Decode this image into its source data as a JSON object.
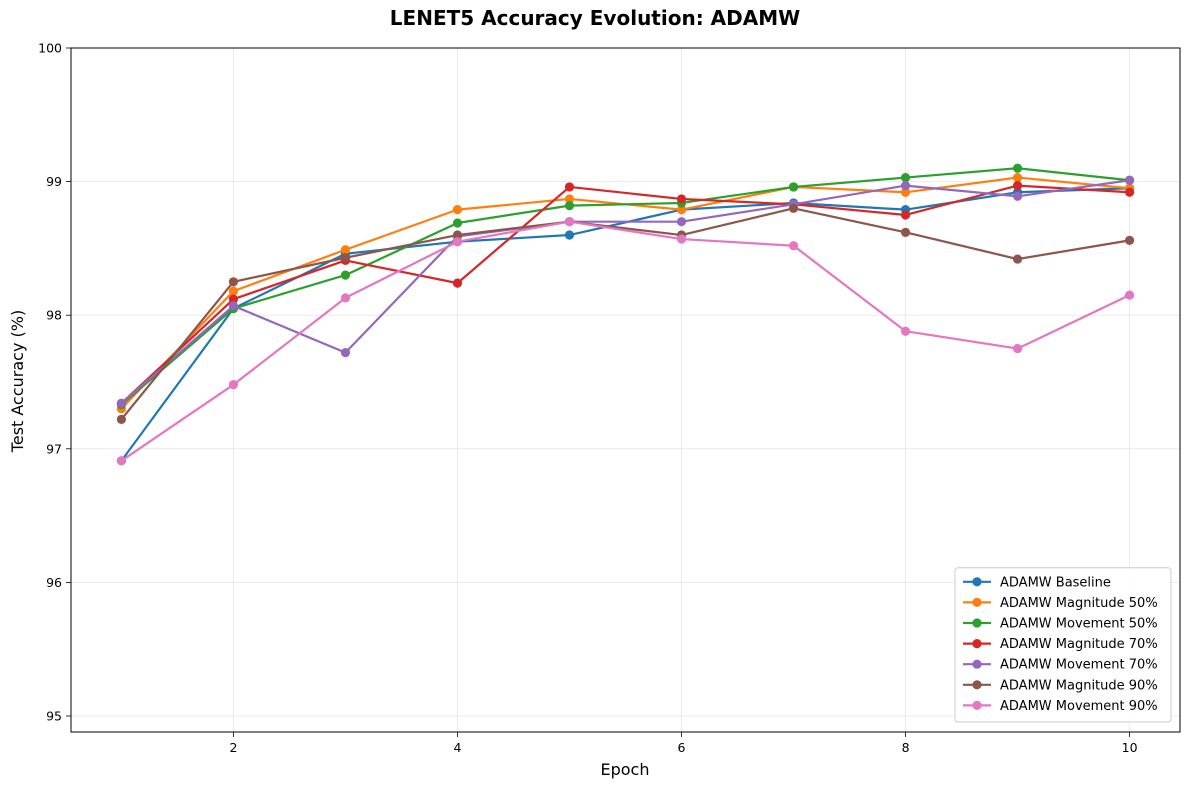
{
  "chart_data": {
    "type": "line",
    "title": "LENET5 Accuracy Evolution: ADAMW",
    "xlabel": "Epoch",
    "ylabel": "Test Accuracy (%)",
    "xlim": [
      0.55,
      10.45
    ],
    "ylim": [
      94.88,
      100
    ],
    "xticks": [
      2,
      4,
      6,
      8,
      10
    ],
    "yticks": [
      95,
      96,
      97,
      98,
      99,
      100
    ],
    "grid": true,
    "legend_position": "lower-right",
    "x": [
      1,
      2,
      3,
      4,
      5,
      6,
      7,
      8,
      9,
      10
    ],
    "series": [
      {
        "name": "ADAMW Baseline",
        "color": "#1f77b4",
        "values": [
          96.91,
          98.05,
          98.46,
          98.55,
          98.6,
          98.79,
          98.84,
          98.79,
          98.92,
          98.95
        ]
      },
      {
        "name": "ADAMW Magnitude 50%",
        "color": "#ff7f0e",
        "values": [
          97.3,
          98.18,
          98.49,
          98.79,
          98.87,
          98.79,
          98.96,
          98.92,
          99.03,
          98.95
        ]
      },
      {
        "name": "ADAMW Movement 50%",
        "color": "#2ca02c",
        "values": [
          97.33,
          98.05,
          98.3,
          98.69,
          98.82,
          98.84,
          98.96,
          99.03,
          99.1,
          99.01
        ]
      },
      {
        "name": "ADAMW Magnitude 70%",
        "color": "#d62728",
        "values": [
          97.34,
          98.12,
          98.41,
          98.24,
          98.96,
          98.87,
          98.83,
          98.75,
          98.97,
          98.92
        ]
      },
      {
        "name": "ADAMW Movement 70%",
        "color": "#9467bd",
        "values": [
          97.34,
          98.07,
          97.72,
          98.59,
          98.7,
          98.7,
          98.83,
          98.97,
          98.89,
          99.01
        ]
      },
      {
        "name": "ADAMW Magnitude 90%",
        "color": "#8c564b",
        "values": [
          97.22,
          98.25,
          98.43,
          98.6,
          98.7,
          98.6,
          98.8,
          98.62,
          98.42,
          98.56
        ]
      },
      {
        "name": "ADAMW Movement 90%",
        "color": "#e377c2",
        "values": [
          96.91,
          97.48,
          98.13,
          98.55,
          98.7,
          98.57,
          98.52,
          97.88,
          97.75,
          98.15
        ]
      }
    ]
  }
}
